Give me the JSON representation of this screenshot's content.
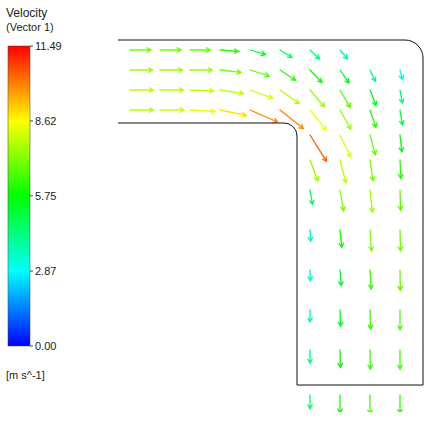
{
  "chart_data": {
    "type": "vector",
    "title": "Velocity",
    "subtitle": "(Vector 1)",
    "tick_labels": false,
    "xlim": [
      0,
      305
    ],
    "ylim": [
      0,
      374
    ],
    "colorbar": {
      "range": [
        0,
        11.49
      ],
      "ticks": [
        {
          "value": 0,
          "label": "0.00"
        },
        2.87,
        5.75,
        8.62,
        11.49
      ],
      "label": "[m s^-1]"
    },
    "x": [
      12,
      42,
      72,
      102,
      132,
      162,
      192,
      222,
      12,
      42,
      72,
      102,
      132,
      162,
      192,
      222,
      252,
      282,
      12,
      42,
      72,
      102,
      132,
      162,
      192,
      222,
      252,
      282,
      12,
      42,
      72,
      102,
      132,
      162,
      192,
      222,
      252,
      282,
      192,
      222,
      252,
      282,
      192,
      222,
      252,
      282,
      192,
      222,
      252,
      282,
      192,
      222,
      252,
      282,
      192,
      222,
      252,
      282,
      192,
      222,
      252,
      282,
      192,
      222,
      252,
      282,
      192,
      222,
      252,
      282
    ],
    "y": [
      362,
      362,
      362,
      362,
      362,
      362,
      362,
      362,
      342,
      342,
      342,
      342,
      342,
      342,
      342,
      342,
      342,
      342,
      322,
      322,
      322,
      322,
      322,
      322,
      322,
      322,
      322,
      322,
      302,
      302,
      302,
      302,
      302,
      302,
      302,
      302,
      302,
      302,
      277,
      277,
      277,
      277,
      252,
      252,
      252,
      252,
      222,
      222,
      222,
      222,
      182,
      182,
      182,
      182,
      142,
      142,
      142,
      142,
      102,
      102,
      102,
      102,
      62,
      62,
      62,
      62,
      17,
      17,
      17,
      17
    ],
    "u": [
      7.0,
      7.0,
      6.8,
      6.2,
      5.2,
      4.0,
      3.2,
      2.5,
      7.5,
      7.5,
      7.4,
      7.0,
      6.4,
      5.2,
      4.0,
      3.0,
      1.8,
      0.8,
      7.8,
      7.8,
      7.9,
      7.8,
      7.6,
      6.4,
      4.8,
      3.4,
      2.0,
      0.8,
      7.8,
      8.0,
      8.4,
      8.8,
      9.2,
      7.8,
      5.4,
      3.6,
      2.0,
      0.8,
      5.5,
      3.6,
      1.8,
      0.6,
      2.6,
      2.0,
      1.0,
      0.3,
      0.8,
      1.2,
      0.8,
      0.2,
      0.2,
      0.6,
      0.5,
      0.2,
      0.1,
      0.4,
      0.4,
      0.1,
      0,
      0.2,
      0.2,
      0,
      0,
      0.1,
      0.1,
      0,
      0,
      0,
      0,
      0
    ],
    "v": [
      0,
      0,
      0,
      -0.5,
      -1.5,
      -2.5,
      -3.0,
      -3.0,
      0,
      0,
      0,
      -0.8,
      -2.0,
      -3.4,
      -4.2,
      -4.4,
      -3.8,
      -3.2,
      0,
      0,
      -0.3,
      -1.2,
      -2.8,
      -4.5,
      -5.6,
      -5.8,
      -5.2,
      -4.4,
      0,
      0,
      -0.5,
      -1.8,
      -4.0,
      -6.2,
      -6.6,
      -6.4,
      -5.8,
      -5.0,
      -8.8,
      -7.4,
      -6.6,
      -5.6,
      -7.0,
      -7.6,
      -7.0,
      -6.2,
      -4.8,
      -7.0,
      -7.4,
      -6.8,
      -3.8,
      -5.8,
      -7.0,
      -7.0,
      -3.6,
      -5.2,
      -6.4,
      -6.8,
      -4.0,
      -5.4,
      -6.4,
      -6.6,
      -4.4,
      -5.8,
      -6.4,
      -6.4,
      -4.6,
      -6.0,
      -6.4,
      -6.2
    ]
  }
}
